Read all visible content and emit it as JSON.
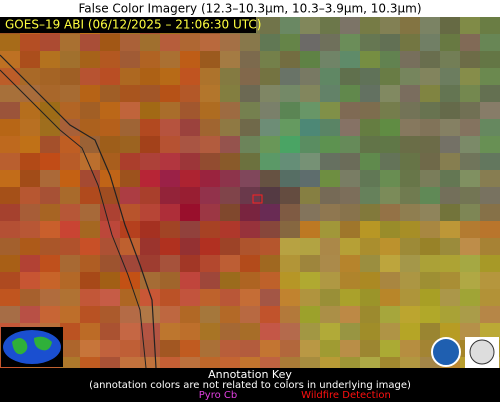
{
  "header": {
    "title": "False Color Imagery (12.3–10.3µm, 10.3–3.9µm, 10.3µm)"
  },
  "image": {
    "label": "GOES–19 ABI (06/12/2025 – 21:06:30 UTC)"
  },
  "annotation_key": {
    "title": "Annotation Key",
    "note": "(annotation colors are not related to colors in underlying image)",
    "items": [
      "Pyro Cb",
      "Wildfire Detection"
    ]
  }
}
